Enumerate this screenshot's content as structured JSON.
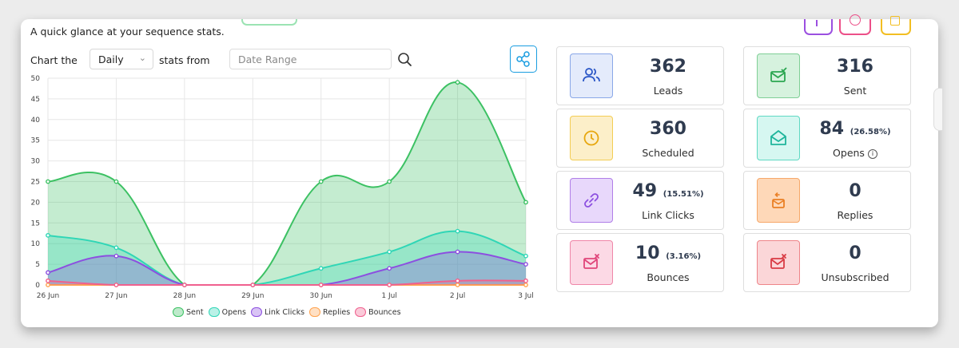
{
  "header": {
    "subtitle": "A quick glance at your sequence stats."
  },
  "controls": {
    "chart_the": "Chart the",
    "interval": "Daily",
    "stats_from": "stats from",
    "date_placeholder": "Date Range"
  },
  "colors": {
    "sent": "#3cc163",
    "opens": "#2fd6b6",
    "link_clicks": "#8c4fe0",
    "replies": "#ffa24d",
    "bounces": "#f0608e",
    "accent": "#1a9de0"
  },
  "icons": {
    "search": "search-icon",
    "share": "share-icon",
    "leads": "users-icon",
    "sent": "mail-check-icon",
    "scheduled": "clock-icon",
    "opens": "open-envelope-icon",
    "link_clicks": "link-icon",
    "replies": "reply-mail-icon",
    "bounces": "mail-x-icon",
    "unsubscribed": "mail-x-icon"
  },
  "stats": {
    "leads": {
      "value": "362",
      "pct": "",
      "label": "Leads"
    },
    "sent": {
      "value": "316",
      "pct": "",
      "label": "Sent"
    },
    "scheduled": {
      "value": "360",
      "pct": "",
      "label": "Scheduled"
    },
    "opens": {
      "value": "84",
      "pct": "(26.58%)",
      "label": "Opens"
    },
    "link_clicks": {
      "value": "49",
      "pct": "(15.51%)",
      "label": "Link Clicks"
    },
    "replies": {
      "value": "0",
      "pct": "",
      "label": "Replies"
    },
    "bounces": {
      "value": "10",
      "pct": "(3.16%)",
      "label": "Bounces"
    },
    "unsubscribed": {
      "value": "0",
      "pct": "",
      "label": "Unsubscribed"
    }
  },
  "chart_data": {
    "type": "area",
    "x": [
      "26 Jun",
      "27 Jun",
      "28 Jun",
      "29 Jun",
      "30 Jun",
      "1 Jul",
      "2 Jul",
      "3 Jul"
    ],
    "ylim": [
      0,
      50
    ],
    "yticks": [
      0,
      5,
      10,
      15,
      20,
      25,
      30,
      35,
      40,
      45,
      50
    ],
    "grid": true,
    "legend_position": "bottom",
    "series": [
      {
        "name": "Sent",
        "color": "#3cc163",
        "values": [
          25,
          25,
          0,
          0,
          25,
          25,
          49,
          20
        ]
      },
      {
        "name": "Opens",
        "color": "#2fd6b6",
        "values": [
          12,
          9,
          0,
          0,
          4,
          8,
          13,
          7
        ]
      },
      {
        "name": "Link Clicks",
        "color": "#8c4fe0",
        "values": [
          3,
          7,
          0,
          0,
          0,
          4,
          8,
          5
        ]
      },
      {
        "name": "Replies",
        "color": "#ffa24d",
        "values": [
          0,
          0,
          0,
          0,
          0,
          0,
          0,
          0
        ]
      },
      {
        "name": "Bounces",
        "color": "#f0608e",
        "values": [
          1,
          0,
          0,
          0,
          0,
          0,
          1,
          1
        ]
      }
    ]
  }
}
